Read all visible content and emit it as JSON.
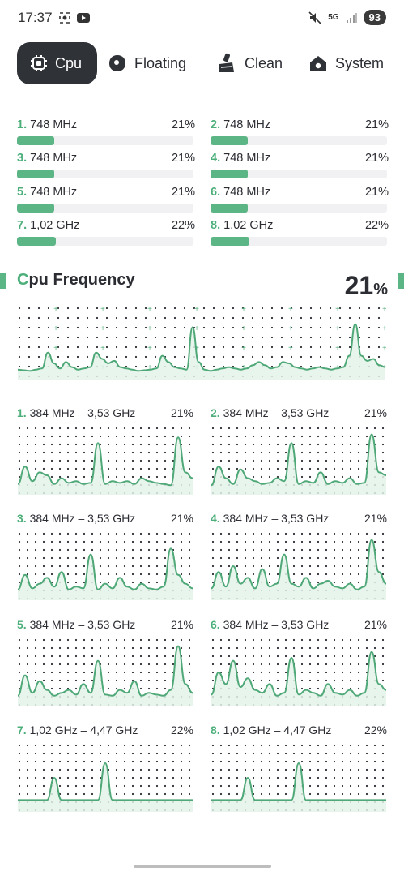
{
  "status": {
    "time": "17:37",
    "network": "5G",
    "battery": "93"
  },
  "tabs": [
    {
      "label": "Cpu",
      "icon": "chip-icon",
      "active": true
    },
    {
      "label": "Floating",
      "icon": "floating-bubble-icon",
      "active": false
    },
    {
      "label": "Clean",
      "icon": "broom-icon",
      "active": false
    },
    {
      "label": "System",
      "icon": "home-icon",
      "active": false
    }
  ],
  "cores": [
    {
      "num": "1.",
      "freq": "748 MHz",
      "pct": "21%",
      "usage": 0.21
    },
    {
      "num": "2.",
      "freq": "748 MHz",
      "pct": "21%",
      "usage": 0.21
    },
    {
      "num": "3.",
      "freq": "748 MHz",
      "pct": "21%",
      "usage": 0.21
    },
    {
      "num": "4.",
      "freq": "748 MHz",
      "pct": "21%",
      "usage": 0.21
    },
    {
      "num": "5.",
      "freq": "748 MHz",
      "pct": "21%",
      "usage": 0.21
    },
    {
      "num": "6.",
      "freq": "748 MHz",
      "pct": "21%",
      "usage": 0.21
    },
    {
      "num": "7.",
      "freq": "1,02 GHz",
      "pct": "22%",
      "usage": 0.22
    },
    {
      "num": "8.",
      "freq": "1,02 GHz",
      "pct": "22%",
      "usage": 0.22
    }
  ],
  "frequency": {
    "title_first": "C",
    "title_rest": "pu Frequency",
    "total_value": "21",
    "total_unit": "%"
  },
  "core_graphs": [
    {
      "num": "1.",
      "range": "384 MHz – 3,53 GHz",
      "pct": "21%"
    },
    {
      "num": "2.",
      "range": "384 MHz – 3,53 GHz",
      "pct": "21%"
    },
    {
      "num": "3.",
      "range": "384 MHz – 3,53 GHz",
      "pct": "21%"
    },
    {
      "num": "4.",
      "range": "384 MHz – 3,53 GHz",
      "pct": "21%"
    },
    {
      "num": "5.",
      "range": "384 MHz – 3,53 GHz",
      "pct": "21%"
    },
    {
      "num": "6.",
      "range": "384 MHz – 3,53 GHz",
      "pct": "21%"
    },
    {
      "num": "7.",
      "range": "1,02 GHz – 4,47 GHz",
      "pct": "22%"
    },
    {
      "num": "8.",
      "range": "1,02 GHz – 4,47 GHz",
      "pct": "22%"
    }
  ],
  "colors": {
    "accent": "#5cb584",
    "line": "#4fa877",
    "fill": "#e3f3ea",
    "dot": "#2b2d33"
  }
}
